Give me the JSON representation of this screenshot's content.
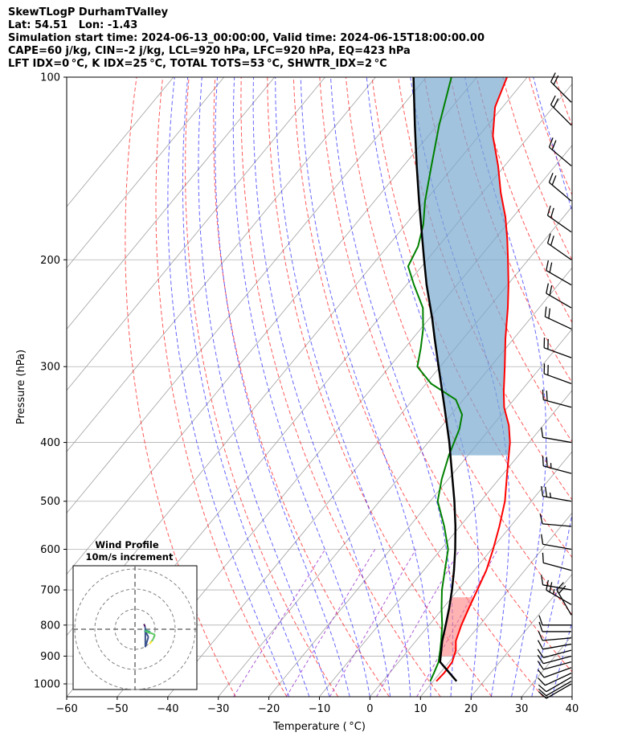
{
  "header": {
    "line1": "SkewTLogP DurhamTValley",
    "line2": "Lat: 54.51   Lon: -1.43",
    "line3": "Simulation start time: 2024-06-13_00:00:00, Valid time: 2024-06-15T18:00:00.00",
    "line4": "CAPE=60 j/kg, CIN=-2 j/kg, LCL=920 hPa, LFC=920 hPa, EQ=423 hPa",
    "line5": "LFT IDX=0 °C, K IDX=25 °C, TOTAL TOTS=53 °C, SHWTR_IDX=2 °C"
  },
  "colors": {
    "temperature": "#ff0000",
    "dewpoint": "#008000",
    "parcel": "#000000",
    "cape_fill": "#7aa9d0",
    "cin_fill": "#ff8080",
    "dry_adiabat": "#ff0000",
    "moist_adiabat": "#0000ff",
    "mixing_ratio": "#9932cc",
    "isotherm": "#a0a0a0"
  },
  "chart_data": {
    "type": "line",
    "subtype": "skew-t log-p",
    "xlabel": "Temperature ( °C)",
    "ylabel": "Pressure (hPa)",
    "xlim": [
      -60,
      40
    ],
    "ylim": [
      1050,
      100
    ],
    "y_scale": "log",
    "x_ticks": [
      -60,
      -50,
      -40,
      -30,
      -20,
      -10,
      0,
      10,
      20,
      30,
      40
    ],
    "x_tick_labels": [
      "−60",
      "−50",
      "−40",
      "−30",
      "−20",
      "−10",
      "0",
      "10",
      "20",
      "30",
      "40"
    ],
    "y_ticks": [
      1000,
      900,
      800,
      700,
      600,
      500,
      400,
      300,
      200,
      100
    ],
    "y_tick_labels": [
      "1000",
      "900",
      "800",
      "700",
      "600",
      "500",
      "400",
      "300",
      "200",
      "100"
    ],
    "grid": true,
    "series": [
      {
        "key": "temperature",
        "points": [
          [
            990,
            10.6
          ],
          [
            960,
            10.8
          ],
          [
            920,
            10.6
          ],
          [
            880,
            9.4
          ],
          [
            850,
            7.9
          ],
          [
            800,
            6.4
          ],
          [
            750,
            5.1
          ],
          [
            700,
            3.8
          ],
          [
            650,
            2.4
          ],
          [
            600,
            0.3
          ],
          [
            550,
            -2.2
          ],
          [
            500,
            -5.2
          ],
          [
            450,
            -9.3
          ],
          [
            400,
            -13.8
          ],
          [
            375,
            -16.8
          ],
          [
            350,
            -20.7
          ],
          [
            330,
            -23.3
          ],
          [
            300,
            -27.2
          ],
          [
            270,
            -31.6
          ],
          [
            240,
            -36.2
          ],
          [
            220,
            -39.8
          ],
          [
            200,
            -44.0
          ],
          [
            185,
            -47.5
          ],
          [
            170,
            -51.5
          ],
          [
            155,
            -56.4
          ],
          [
            140,
            -61.3
          ],
          [
            125,
            -67.2
          ],
          [
            112,
            -71.5
          ],
          [
            100,
            -74.0
          ]
        ]
      },
      {
        "key": "dewpoint",
        "points": [
          [
            990,
            9.4
          ],
          [
            960,
            8.8
          ],
          [
            920,
            7.9
          ],
          [
            880,
            6.3
          ],
          [
            850,
            5.0
          ],
          [
            800,
            2.6
          ],
          [
            750,
            -0.3
          ],
          [
            700,
            -3.2
          ],
          [
            650,
            -5.8
          ],
          [
            600,
            -8.6
          ],
          [
            550,
            -13.1
          ],
          [
            500,
            -18.5
          ],
          [
            460,
            -21.3
          ],
          [
            420,
            -23.8
          ],
          [
            380,
            -26.0
          ],
          [
            360,
            -27.8
          ],
          [
            340,
            -31.5
          ],
          [
            320,
            -39.0
          ],
          [
            300,
            -44.5
          ],
          [
            280,
            -46.8
          ],
          [
            260,
            -49.5
          ],
          [
            240,
            -53.0
          ],
          [
            220,
            -58.5
          ],
          [
            205,
            -62.7
          ],
          [
            190,
            -64.0
          ],
          [
            175,
            -66.5
          ],
          [
            160,
            -70.0
          ],
          [
            140,
            -74.5
          ],
          [
            120,
            -79.6
          ],
          [
            100,
            -85.0
          ]
        ]
      },
      {
        "key": "parcel",
        "points": [
          [
            990,
            14.6
          ],
          [
            920,
            8.2
          ],
          [
            850,
            5.2
          ],
          [
            800,
            3.3
          ],
          [
            750,
            1.2
          ],
          [
            700,
            -1.2
          ],
          [
            650,
            -4.0
          ],
          [
            600,
            -7.2
          ],
          [
            550,
            -10.9
          ],
          [
            500,
            -15.2
          ],
          [
            450,
            -20.2
          ],
          [
            400,
            -25.8
          ],
          [
            350,
            -32.5
          ],
          [
            300,
            -40.3
          ],
          [
            270,
            -45.6
          ],
          [
            250,
            -49.4
          ],
          [
            220,
            -56.0
          ],
          [
            200,
            -60.6
          ],
          [
            180,
            -65.6
          ],
          [
            160,
            -71.2
          ],
          [
            140,
            -77.4
          ],
          [
            120,
            -84.4
          ],
          [
            100,
            -92.5
          ]
        ]
      }
    ],
    "wind_barbs": {
      "pressures": [
        1000,
        990,
        975,
        960,
        940,
        920,
        900,
        880,
        860,
        840,
        820,
        800,
        770,
        740,
        700,
        650,
        600,
        550,
        500,
        450,
        400,
        350,
        320,
        290,
        260,
        240,
        220,
        200,
        180,
        160,
        140,
        120,
        110
      ],
      "direction_deg": [
        240,
        240,
        240,
        245,
        250,
        255,
        255,
        255,
        260,
        265,
        270,
        270,
        330,
        300,
        280,
        285,
        280,
        275,
        280,
        285,
        280,
        285,
        290,
        290,
        295,
        300,
        300,
        305,
        305,
        310,
        310,
        315,
        315
      ],
      "speed_kt": [
        10,
        10,
        10,
        10,
        10,
        10,
        10,
        10,
        10,
        10,
        10,
        10,
        20,
        15,
        10,
        10,
        10,
        10,
        15,
        15,
        10,
        20,
        20,
        20,
        20,
        20,
        20,
        20,
        20,
        20,
        20,
        20,
        20
      ]
    },
    "hodograph": {
      "title": "Wind Profile",
      "subtitle": "10m/s increment",
      "ring_step_ms": 10,
      "rings": 3
    }
  }
}
